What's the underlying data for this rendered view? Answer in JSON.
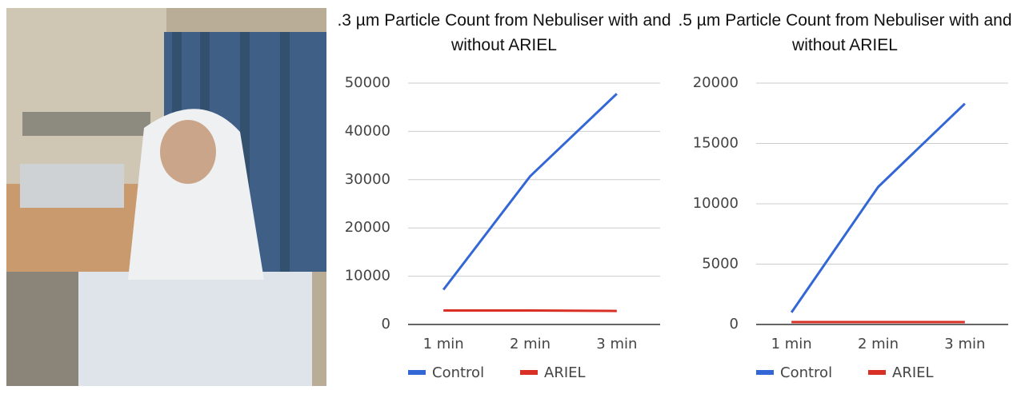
{
  "chart_data": [
    {
      "type": "line",
      "title": ".3 µm Particle Count from Nebuliser with and without ARIEL",
      "categories": [
        "1 min",
        "2 min",
        "3 min"
      ],
      "series": [
        {
          "name": "Control",
          "color": "#3367d6",
          "values": [
            7200,
            30700,
            47800
          ]
        },
        {
          "name": "ARIEL",
          "color": "#d93025",
          "values": [
            2900,
            2900,
            2800
          ]
        }
      ],
      "ylim": [
        0,
        50000
      ],
      "yticks": [
        0,
        10000,
        20000,
        30000,
        40000,
        50000
      ],
      "grid": true,
      "legend": "bottom"
    },
    {
      "type": "line",
      "title": ".5 µm Particle Count from Nebuliser with and without ARIEL",
      "categories": [
        "1 min",
        "2 min",
        "3 min"
      ],
      "series": [
        {
          "name": "Control",
          "color": "#3367d6",
          "values": [
            1000,
            11400,
            18300
          ]
        },
        {
          "name": "ARIEL",
          "color": "#d93025",
          "values": [
            200,
            200,
            200
          ]
        }
      ],
      "ylim": [
        0,
        20000
      ],
      "yticks": [
        0,
        5000,
        10000,
        15000,
        20000
      ],
      "grid": true,
      "legend": "bottom"
    }
  ]
}
